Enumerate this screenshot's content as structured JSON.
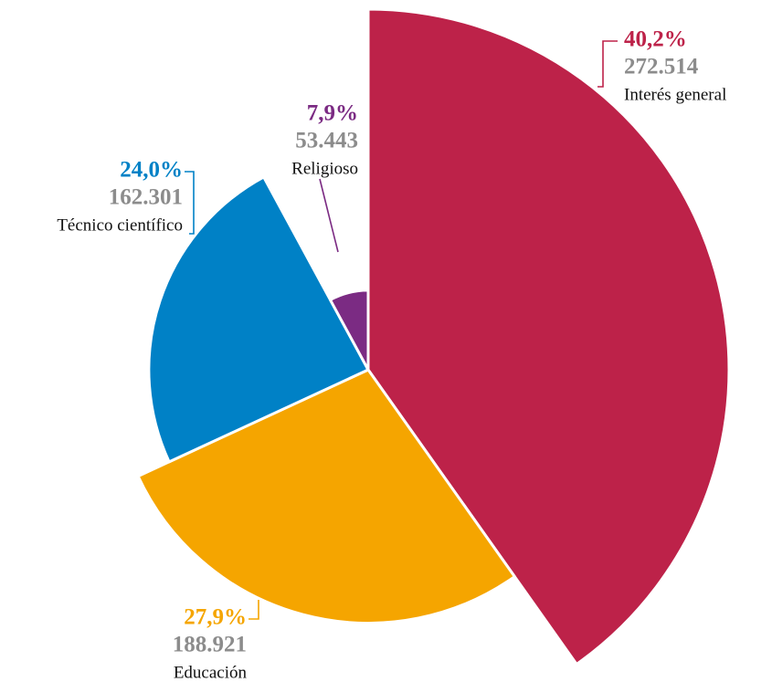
{
  "chart_data": {
    "type": "pie",
    "categories": [
      "Interés general",
      "Educación",
      "Técnico científico",
      "Religioso"
    ],
    "values": [
      40.2,
      27.9,
      24.0,
      7.9
    ],
    "value_labels": [
      "40,2%",
      "27,9%",
      "24,0%",
      "7,9%"
    ],
    "counts": [
      272514,
      188921,
      162301,
      53443
    ],
    "count_labels": [
      "272.514",
      "188.921",
      "162.301",
      "53.443"
    ],
    "colors": [
      "#bd2249",
      "#f5a500",
      "#0081c6",
      "#7b2b83"
    ]
  }
}
